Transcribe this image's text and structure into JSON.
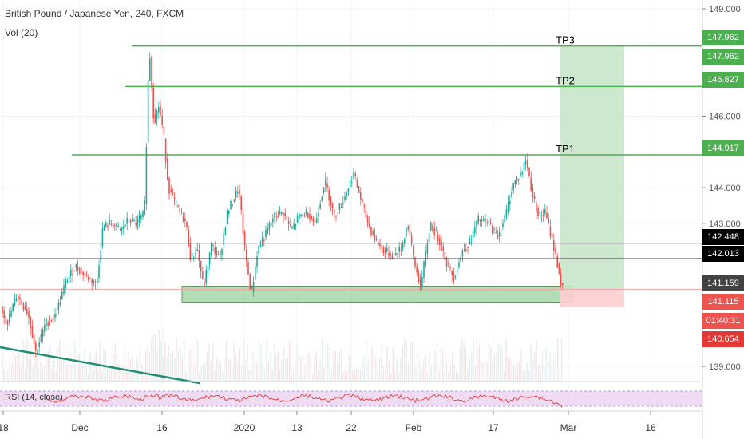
{
  "header": {
    "title": "British Pound / Japanese Yen, 240, FXCM",
    "volume_label": "Vol (20)"
  },
  "rsi": {
    "label": "RSI (14, close)"
  },
  "colors": {
    "up": "#26a69a",
    "down": "#ef5350",
    "tp_line": "#4caf50",
    "target_zone": "#c8e6c9",
    "stop_zone": "#ffcdd2",
    "support_zone": "#81c784",
    "rsi_band": "#e1bee7",
    "rsi_line": "#e53935",
    "trendline": "#1b8f72"
  },
  "chart_data": {
    "type": "candlestick",
    "x_ticks": [
      "18",
      "Dec",
      "16",
      "2020",
      "13",
      "22",
      "Feb",
      "17",
      "Mar",
      "16"
    ],
    "y_ticks": [
      139.0,
      143.0,
      144.0,
      146.0,
      149.0
    ],
    "y_tick_labels": [
      "139.000",
      "143.000",
      "144.000",
      "146.000",
      "149.000"
    ],
    "ylim": [
      138.5,
      149.0
    ],
    "annotations": [
      {
        "label": "TP3",
        "value": 147.962
      },
      {
        "label": "TP2",
        "value": 146.827
      },
      {
        "label": "TP1",
        "value": 144.917
      }
    ],
    "horizontal_levels": [
      142.448,
      142.013
    ],
    "support_zone": [
      140.8,
      141.2
    ],
    "price_path": [
      [
        0,
        140.8
      ],
      [
        10,
        140.2
      ],
      [
        22,
        141.0
      ],
      [
        36,
        140.5
      ],
      [
        46,
        139.4
      ],
      [
        58,
        140.2
      ],
      [
        70,
        140.4
      ],
      [
        84,
        141.4
      ],
      [
        96,
        141.8
      ],
      [
        110,
        141.5
      ],
      [
        122,
        141.3
      ],
      [
        130,
        142.9
      ],
      [
        140,
        143.0
      ],
      [
        152,
        142.8
      ],
      [
        162,
        143.1
      ],
      [
        172,
        143.0
      ],
      [
        182,
        143.3
      ],
      [
        188,
        148.0
      ],
      [
        194,
        145.8
      ],
      [
        200,
        146.3
      ],
      [
        206,
        145.5
      ],
      [
        212,
        144.0
      ],
      [
        222,
        143.5
      ],
      [
        234,
        143.0
      ],
      [
        240,
        142.0
      ],
      [
        248,
        142.3
      ],
      [
        256,
        141.2
      ],
      [
        266,
        142.4
      ],
      [
        276,
        142.0
      ],
      [
        286,
        143.3
      ],
      [
        300,
        144.0
      ],
      [
        308,
        142.2
      ],
      [
        316,
        141.0
      ],
      [
        324,
        142.3
      ],
      [
        334,
        142.7
      ],
      [
        344,
        143.2
      ],
      [
        356,
        143.3
      ],
      [
        366,
        142.8
      ],
      [
        376,
        143.2
      ],
      [
        386,
        143.3
      ],
      [
        396,
        143.0
      ],
      [
        408,
        144.2
      ],
      [
        420,
        143.2
      ],
      [
        432,
        143.7
      ],
      [
        444,
        144.4
      ],
      [
        454,
        143.6
      ],
      [
        462,
        143.0
      ],
      [
        472,
        142.5
      ],
      [
        484,
        142.2
      ],
      [
        494,
        142.1
      ],
      [
        504,
        142.3
      ],
      [
        512,
        143.0
      ],
      [
        520,
        141.9
      ],
      [
        528,
        141.2
      ],
      [
        540,
        143.0
      ],
      [
        552,
        142.5
      ],
      [
        562,
        141.8
      ],
      [
        570,
        141.5
      ],
      [
        580,
        142.2
      ],
      [
        590,
        142.5
      ],
      [
        600,
        143.1
      ],
      [
        614,
        143.0
      ],
      [
        624,
        142.6
      ],
      [
        634,
        143.2
      ],
      [
        644,
        144.1
      ],
      [
        654,
        144.4
      ],
      [
        660,
        144.8
      ],
      [
        668,
        143.8
      ],
      [
        676,
        143.2
      ],
      [
        684,
        143.3
      ],
      [
        692,
        142.6
      ],
      [
        700,
        141.8
      ],
      [
        705,
        141.159
      ]
    ]
  },
  "price_tags": [
    {
      "value": "147.962",
      "color": "#4caf50"
    },
    {
      "value": "147.962",
      "color": "#4caf50"
    },
    {
      "value": "146.827",
      "color": "#4caf50"
    },
    {
      "value": "144.917",
      "color": "#4caf50"
    },
    {
      "value": "142.448",
      "color": "#000000"
    },
    {
      "value": "142.013",
      "color": "#000000"
    },
    {
      "value": "141.159",
      "color": "#424242"
    },
    {
      "value": "141.115",
      "color": "#ef5350"
    },
    {
      "value": "01:40:31",
      "color": "#ef5350"
    },
    {
      "value": "140.654",
      "color": "#e53935"
    }
  ]
}
